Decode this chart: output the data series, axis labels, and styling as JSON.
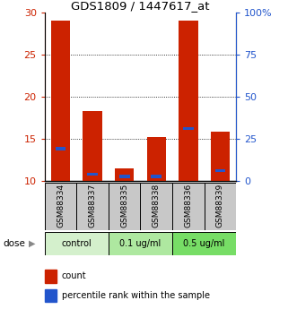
{
  "title": "GDS1809 / 1447617_at",
  "samples": [
    "GSM88334",
    "GSM88337",
    "GSM88335",
    "GSM88338",
    "GSM88336",
    "GSM88339"
  ],
  "count_values": [
    29.0,
    18.3,
    11.5,
    15.2,
    29.0,
    15.8
  ],
  "percentile_values": [
    13.8,
    10.8,
    10.5,
    10.5,
    16.2,
    11.2
  ],
  "y_min": 10,
  "y_max": 30,
  "y_ticks": [
    10,
    15,
    20,
    25,
    30
  ],
  "y2_ticks_labels": [
    "0",
    "25",
    "50",
    "75",
    "100%"
  ],
  "y2_tick_positions": [
    10,
    15,
    20,
    25,
    30
  ],
  "groups": [
    {
      "label": "control",
      "span": [
        0,
        2
      ],
      "color": "#d4f0cc"
    },
    {
      "label": "0.1 ug/ml",
      "span": [
        2,
        4
      ],
      "color": "#aee8a0"
    },
    {
      "label": "0.5 ug/ml",
      "span": [
        4,
        6
      ],
      "color": "#77dd66"
    }
  ],
  "bar_color": "#cc2200",
  "percentile_color": "#2255cc",
  "bar_width": 0.6,
  "label_area_color": "#c8c8c8",
  "dose_label": "dose",
  "legend_count": "count",
  "legend_percentile": "percentile rank within the sample",
  "left_tick_color": "#cc2200",
  "right_tick_color": "#2255cc",
  "bg_color": "#ffffff",
  "plot_bg": "#ffffff"
}
